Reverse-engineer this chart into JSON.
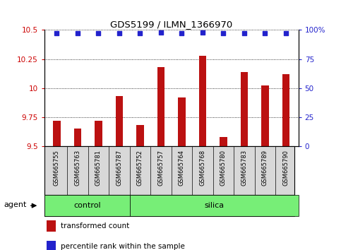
{
  "title": "GDS5199 / ILMN_1366970",
  "samples": [
    "GSM665755",
    "GSM665763",
    "GSM665781",
    "GSM665787",
    "GSM665752",
    "GSM665757",
    "GSM665764",
    "GSM665768",
    "GSM665780",
    "GSM665783",
    "GSM665789",
    "GSM665790"
  ],
  "transformed_counts": [
    9.72,
    9.65,
    9.72,
    9.93,
    9.68,
    10.18,
    9.92,
    10.28,
    9.58,
    10.14,
    10.02,
    10.12
  ],
  "percentile_ranks": [
    97,
    97,
    97,
    97,
    97,
    98,
    97,
    98,
    97,
    97,
    97,
    97
  ],
  "groups": [
    "control",
    "control",
    "control",
    "control",
    "silica",
    "silica",
    "silica",
    "silica",
    "silica",
    "silica",
    "silica",
    "silica"
  ],
  "ylim_left": [
    9.5,
    10.5
  ],
  "ylim_right": [
    0,
    100
  ],
  "yticks_left": [
    9.5,
    9.75,
    10.0,
    10.25,
    10.5
  ],
  "ytick_labels_left": [
    "9.5",
    "9.75",
    "10",
    "10.25",
    "10.5"
  ],
  "yticks_right": [
    0,
    25,
    50,
    75,
    100
  ],
  "ytick_labels_right": [
    "0",
    "25",
    "50",
    "75",
    "100%"
  ],
  "bar_color": "#bb1111",
  "dot_color": "#2222cc",
  "control_color": "#77ee77",
  "silica_color": "#77ee77",
  "sample_bg_color": "#d8d8d8",
  "agent_label": "agent",
  "legend_bar_label": "transformed count",
  "legend_dot_label": "percentile rank within the sample",
  "n_control": 4,
  "n_silica": 8
}
